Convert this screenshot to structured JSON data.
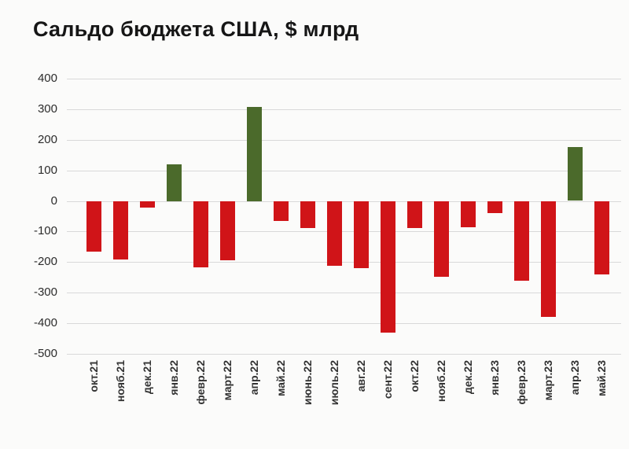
{
  "chart_data": {
    "type": "bar",
    "title": "Сальдо бюджета США, $ млрд",
    "categories": [
      "окт.21",
      "нояб.21",
      "дек.21",
      "янв.22",
      "февр.22",
      "март.22",
      "апр.22",
      "май.22",
      "июнь.22",
      "июль.22",
      "авг.22",
      "сент.22",
      "окт.22",
      "нояб.22",
      "дек.22",
      "янв.23",
      "февр.23",
      "март.23",
      "апр.23",
      "май.23"
    ],
    "values": [
      -165,
      -191,
      -21,
      119,
      -217,
      -193,
      308,
      -66,
      -89,
      -211,
      -220,
      -430,
      -88,
      -249,
      -85,
      -39,
      -262,
      -378,
      176,
      -240
    ],
    "xlabel": "",
    "ylabel": "",
    "ylim": [
      -500,
      400
    ],
    "yticks": [
      400,
      300,
      200,
      100,
      0,
      -100,
      -200,
      -300,
      -400,
      -500
    ],
    "grid": "horizontal",
    "legend": "none",
    "positive_color": "#4b6a2b",
    "negative_color": "#d01418",
    "gridline_color": "#d9d9d9"
  }
}
